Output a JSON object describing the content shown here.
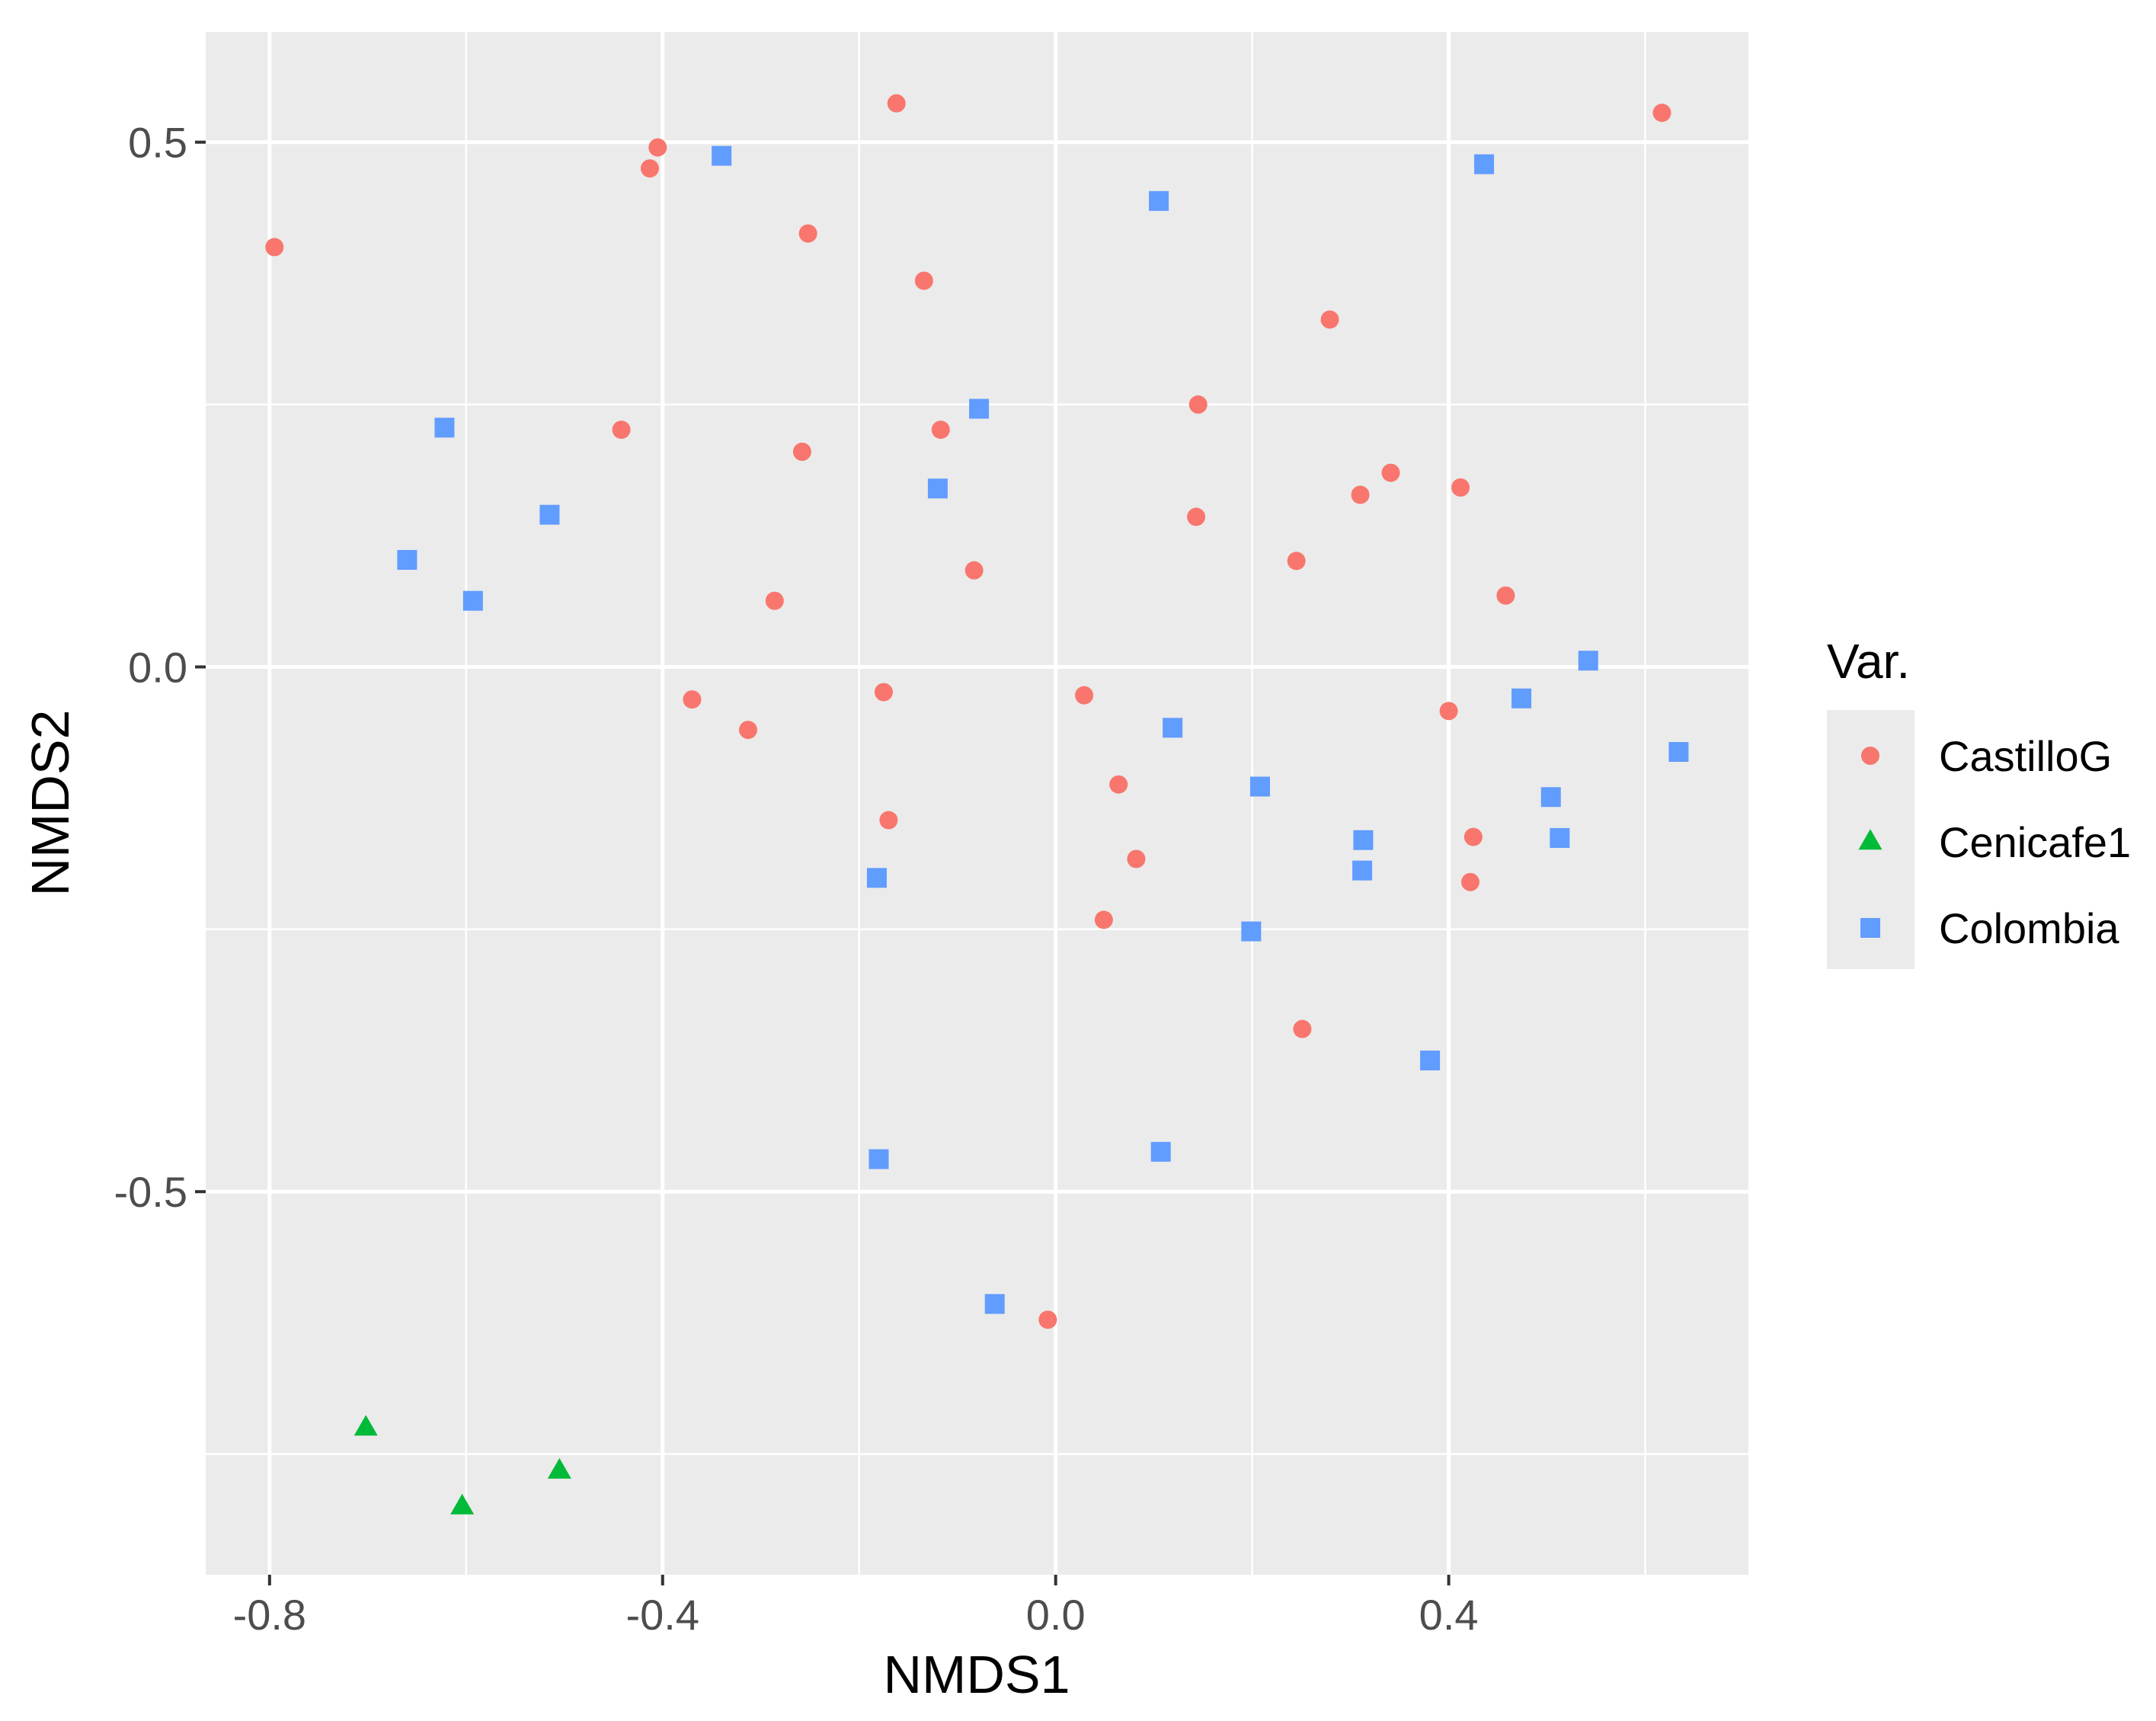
{
  "chart_data": {
    "type": "scatter",
    "xlabel": "NMDS1",
    "ylabel": "NMDS2",
    "xlim": [
      -0.865,
      0.705
    ],
    "ylim": [
      -0.865,
      0.605
    ],
    "x_ticks": [
      -0.8,
      -0.4,
      0.0,
      0.4
    ],
    "x_tick_labels": [
      "-0.8",
      "-0.4",
      "0.0",
      "0.4"
    ],
    "y_ticks": [
      0.5,
      0.0,
      -0.5
    ],
    "y_tick_labels": [
      "0.5",
      "0.0",
      "-0.5"
    ],
    "grid": true,
    "legend": {
      "title": "Var.",
      "position": "right"
    },
    "series": [
      {
        "name": "CastilloG",
        "color": "#F8766D",
        "marker": "circle",
        "points": [
          [
            -0.795,
            0.4
          ],
          [
            -0.405,
            0.495
          ],
          [
            -0.413,
            0.475
          ],
          [
            -0.162,
            0.537
          ],
          [
            -0.252,
            0.413
          ],
          [
            -0.134,
            0.368
          ],
          [
            0.617,
            0.528
          ],
          [
            0.279,
            0.331
          ],
          [
            -0.442,
            0.226
          ],
          [
            -0.258,
            0.205
          ],
          [
            -0.117,
            0.226
          ],
          [
            0.145,
            0.25
          ],
          [
            0.341,
            0.185
          ],
          [
            0.31,
            0.164
          ],
          [
            0.412,
            0.171
          ],
          [
            0.143,
            0.143
          ],
          [
            -0.083,
            0.092
          ],
          [
            0.245,
            0.101
          ],
          [
            0.458,
            0.068
          ],
          [
            -0.286,
            0.063
          ],
          [
            -0.37,
            -0.031
          ],
          [
            -0.313,
            -0.06
          ],
          [
            -0.175,
            -0.024
          ],
          [
            0.029,
            -0.027
          ],
          [
            0.4,
            -0.042
          ],
          [
            0.064,
            -0.112
          ],
          [
            -0.17,
            -0.146
          ],
          [
            0.425,
            -0.162
          ],
          [
            0.082,
            -0.183
          ],
          [
            0.422,
            -0.205
          ],
          [
            0.049,
            -0.241
          ],
          [
            0.251,
            -0.345
          ],
          [
            -0.008,
            -0.622
          ]
        ]
      },
      {
        "name": "Cenicafe1",
        "color": "#00BA38",
        "marker": "triangle",
        "points": [
          [
            -0.702,
            -0.725
          ],
          [
            -0.604,
            -0.8
          ],
          [
            -0.505,
            -0.766
          ]
        ]
      },
      {
        "name": "Colombia",
        "color": "#619CFF",
        "marker": "square",
        "points": [
          [
            -0.34,
            0.487
          ],
          [
            0.105,
            0.444
          ],
          [
            0.436,
            0.479
          ],
          [
            -0.078,
            0.246
          ],
          [
            -0.622,
            0.228
          ],
          [
            -0.12,
            0.17
          ],
          [
            -0.515,
            0.145
          ],
          [
            -0.66,
            0.102
          ],
          [
            -0.593,
            0.063
          ],
          [
            0.542,
            0.006
          ],
          [
            0.474,
            -0.03
          ],
          [
            0.119,
            -0.058
          ],
          [
            0.634,
            -0.081
          ],
          [
            0.208,
            -0.114
          ],
          [
            0.504,
            -0.124
          ],
          [
            0.313,
            -0.165
          ],
          [
            0.513,
            -0.163
          ],
          [
            0.312,
            -0.194
          ],
          [
            -0.182,
            -0.201
          ],
          [
            0.199,
            -0.252
          ],
          [
            0.381,
            -0.375
          ],
          [
            0.107,
            -0.462
          ],
          [
            -0.18,
            -0.469
          ],
          [
            -0.062,
            -0.607
          ]
        ]
      }
    ]
  }
}
